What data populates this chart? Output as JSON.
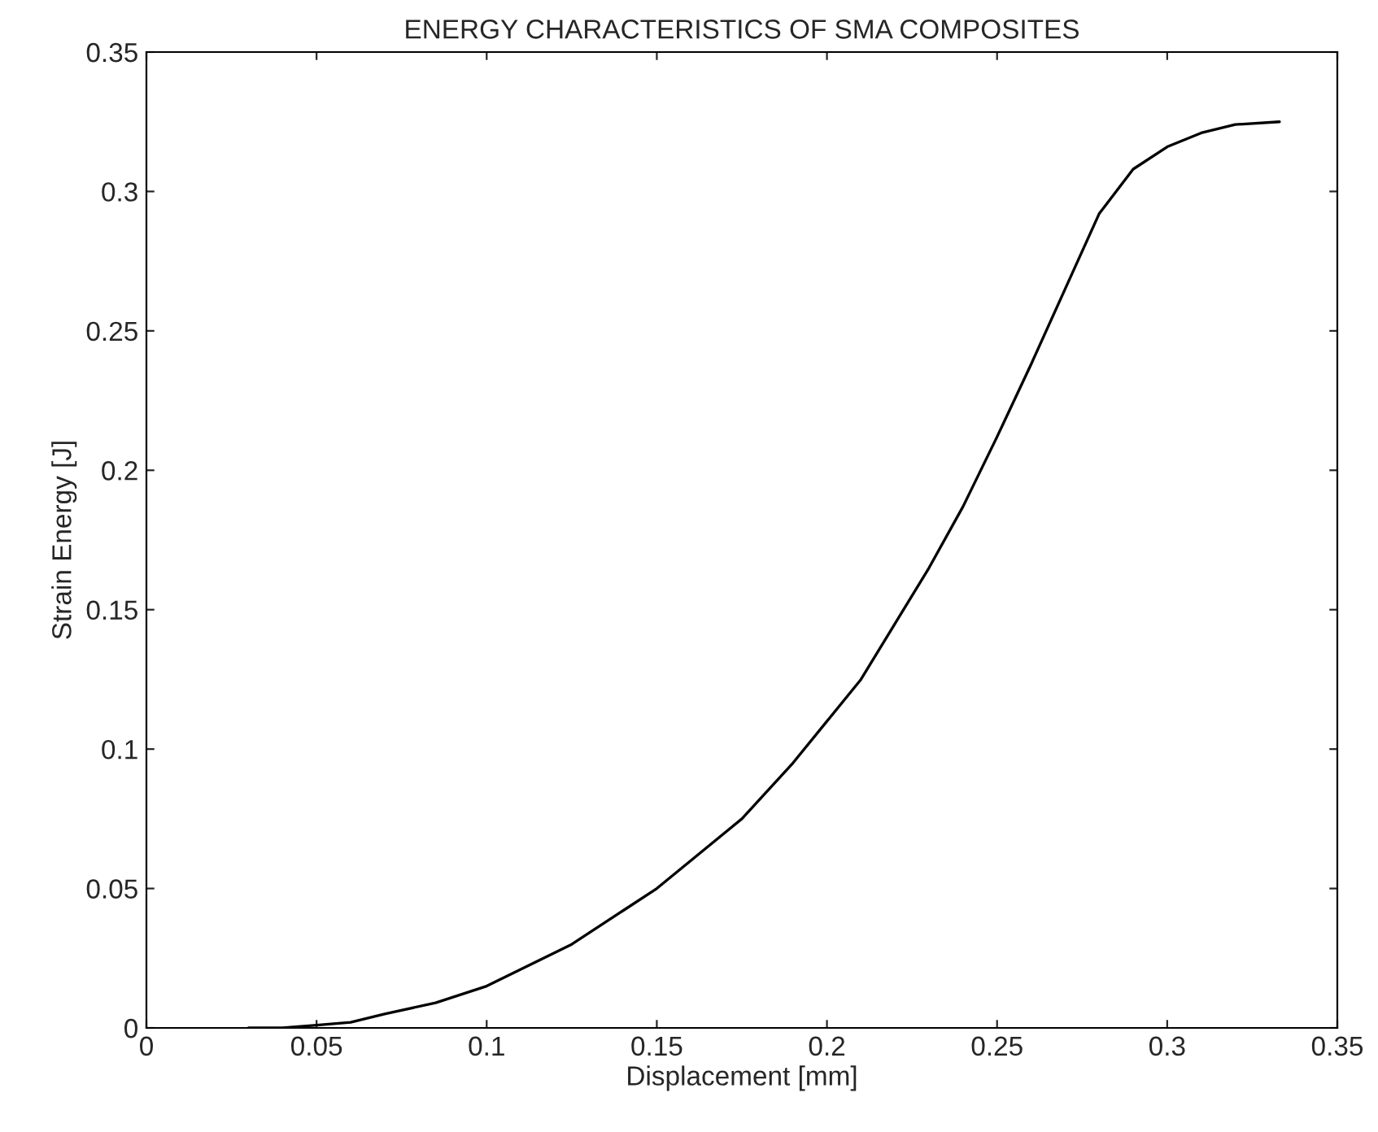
{
  "chart_data": {
    "type": "line",
    "title": "ENERGY CHARACTERISTICS OF SMA COMPOSITES",
    "xlabel": "Displacement [mm]",
    "ylabel": "Strain Energy [J]",
    "x": [
      0.03,
      0.04,
      0.05,
      0.06,
      0.07,
      0.085,
      0.1,
      0.11,
      0.125,
      0.14,
      0.15,
      0.16,
      0.175,
      0.19,
      0.2,
      0.21,
      0.22,
      0.23,
      0.24,
      0.25,
      0.26,
      0.27,
      0.28,
      0.29,
      0.3,
      0.31,
      0.32,
      0.333
    ],
    "series": [
      {
        "color": "#000000",
        "values": [
          0,
          0,
          0.001,
          0.002,
          0.005,
          0.009,
          0.015,
          0.021,
          0.03,
          0.042,
          0.05,
          0.06,
          0.075,
          0.095,
          0.11,
          0.125,
          0.145,
          0.165,
          0.187,
          0.212,
          0.238,
          0.265,
          0.292,
          0.308,
          0.316,
          0.321,
          0.324,
          0.325
        ]
      }
    ],
    "xlim": [
      0,
      0.35
    ],
    "xticks": [
      0,
      0.05,
      0.1,
      0.15,
      0.2,
      0.25,
      0.3,
      0.35
    ],
    "ylim": [
      0,
      0.35
    ],
    "yticks": [
      0,
      0.05,
      0.1,
      0.15,
      0.2,
      0.25,
      0.3,
      0.35
    ],
    "grid": false,
    "legend": false,
    "marker": "none",
    "line_style": "solid"
  }
}
